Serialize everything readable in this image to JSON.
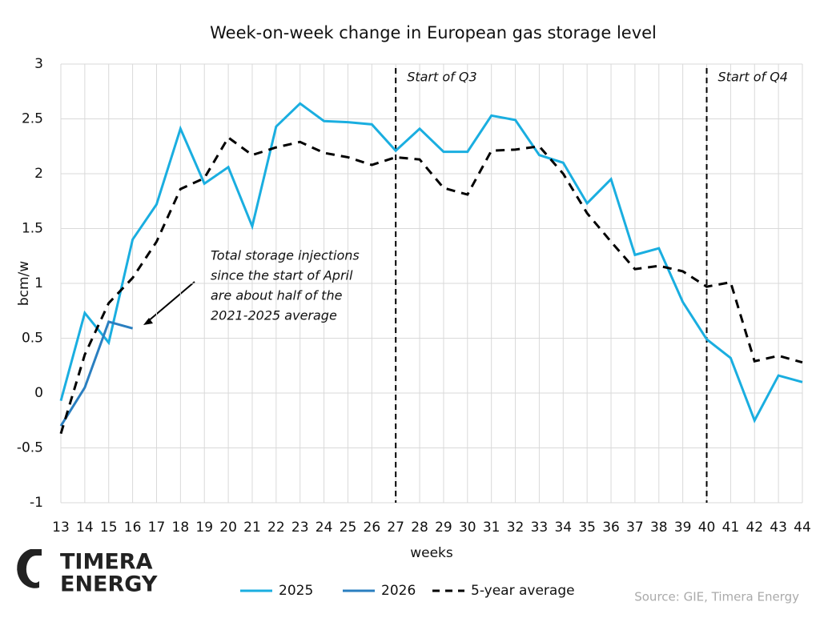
{
  "chart_data": {
    "type": "line",
    "title": "Week-on-week change in European gas storage level",
    "x_label": "weeks",
    "y_label": "bcm/w",
    "x": [
      13,
      14,
      15,
      16,
      17,
      18,
      19,
      20,
      21,
      22,
      23,
      24,
      25,
      26,
      27,
      28,
      29,
      30,
      31,
      32,
      33,
      34,
      35,
      36,
      37,
      38,
      39,
      40,
      41,
      42,
      43,
      44
    ],
    "xlim": [
      13,
      44
    ],
    "xticks": [
      13,
      14,
      15,
      16,
      17,
      18,
      19,
      20,
      21,
      22,
      23,
      24,
      25,
      26,
      27,
      28,
      29,
      30,
      31,
      32,
      33,
      34,
      35,
      36,
      37,
      38,
      39,
      40,
      41,
      42,
      43,
      44
    ],
    "ylim": [
      -1,
      3
    ],
    "yticks": [
      -1,
      -0.5,
      0,
      0.5,
      1,
      1.5,
      2,
      2.5,
      3
    ],
    "grid": true,
    "series": [
      {
        "name": "2025",
        "color": "#1aaee0",
        "dash": false,
        "values": [
          -0.07,
          0.73,
          0.46,
          1.4,
          1.72,
          2.41,
          1.91,
          2.06,
          1.52,
          2.43,
          2.64,
          2.48,
          2.47,
          2.45,
          2.21,
          2.41,
          2.2,
          2.2,
          2.53,
          2.49,
          2.17,
          2.1,
          1.73,
          1.95,
          1.26,
          1.32,
          0.83,
          0.49,
          0.32,
          -0.25,
          0.16,
          0.1
        ]
      },
      {
        "name": "2026",
        "color": "#2a7fc0",
        "dash": false,
        "values": [
          -0.3,
          0.05,
          0.65,
          0.59,
          null,
          null,
          null,
          null,
          null,
          null,
          null,
          null,
          null,
          null,
          null,
          null,
          null,
          null,
          null,
          null,
          null,
          null,
          null,
          null,
          null,
          null,
          null,
          null,
          null,
          null,
          null,
          null
        ]
      },
      {
        "name": "5-year average",
        "color": "#000000",
        "dash": true,
        "values": [
          -0.37,
          0.35,
          0.82,
          1.05,
          1.38,
          1.86,
          1.96,
          2.33,
          2.17,
          2.24,
          2.29,
          2.19,
          2.15,
          2.08,
          2.15,
          2.13,
          1.87,
          1.81,
          2.21,
          2.22,
          2.25,
          2.0,
          1.64,
          1.38,
          1.13,
          1.16,
          1.11,
          0.97,
          1.01,
          0.29,
          0.34,
          0.28
        ]
      }
    ],
    "vlines": [
      {
        "x": 27,
        "label": "Start of Q3"
      },
      {
        "x": 40,
        "label": "Start of Q4"
      }
    ],
    "annotation": [
      "Total storage injections",
      "since the start of April",
      "are about half of the",
      "2021-2025 average"
    ],
    "source": "Source: GIE, Timera Energy"
  },
  "logo": [
    "TIMERA",
    "ENERGY"
  ]
}
